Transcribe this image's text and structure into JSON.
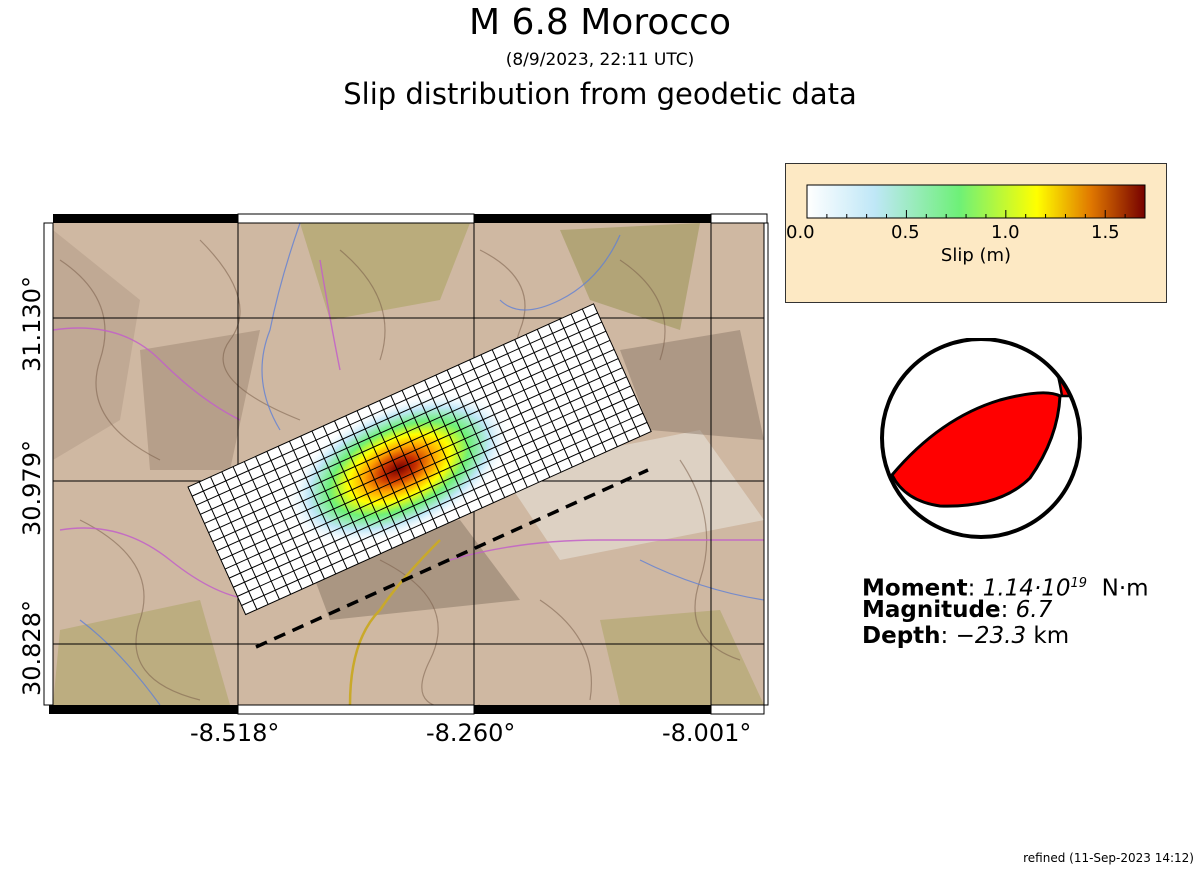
{
  "header": {
    "title": "M 6.8 Morocco",
    "subtitle": "(8/9/2023, 22:11 UTC)",
    "subtitle2": "Slip distribution from geodetic data"
  },
  "map": {
    "lat_labels": [
      "31.130°",
      "30.979°",
      "30.828°"
    ],
    "lon_labels": [
      "-8.518°",
      "-8.260°",
      "-8.001°"
    ],
    "fault_grid": {
      "cols": 36,
      "rows": 14
    }
  },
  "colorbar": {
    "label": "Slip (m)",
    "ticks": [
      "0.0",
      "0.5",
      "1.0",
      "1.5"
    ],
    "range": [
      0,
      1.7
    ],
    "colors": [
      "#ffffff",
      "#bfe7f7",
      "#6ef078",
      "#ffff00",
      "#e07800",
      "#760000"
    ]
  },
  "mechanism": {
    "compressional_color": "#ff0000",
    "tension_color": "#ffffff"
  },
  "stats": {
    "moment_label": "Moment",
    "moment_mantissa": "1.14·10",
    "moment_exponent": "19",
    "moment_unit": "N·m",
    "magnitude_label": "Magnitude",
    "magnitude_value": "6.7",
    "depth_label": "Depth",
    "depth_value": "−23.3",
    "depth_unit": "km"
  },
  "footer": {
    "refined": "refined (11-Sep-2023 14:12)"
  }
}
